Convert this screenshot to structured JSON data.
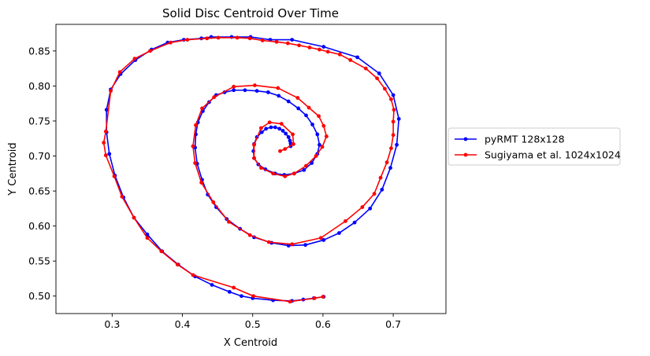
{
  "chart_data": {
    "type": "line",
    "title": "Solid Disc Centroid Over Time",
    "xlabel": "X Centroid",
    "ylabel": "Y Centroid",
    "xlim": [
      0.22,
      0.775
    ],
    "ylim": [
      0.475,
      0.888
    ],
    "xticks": [
      0.3,
      0.4,
      0.5,
      0.6,
      0.7
    ],
    "xtick_labels": [
      "0.3",
      "0.4",
      "0.5",
      "0.6",
      "0.7"
    ],
    "yticks": [
      0.5,
      0.55,
      0.6,
      0.65,
      0.7,
      0.75,
      0.8,
      0.85
    ],
    "ytick_labels": [
      "0.50",
      "0.55",
      "0.60",
      "0.65",
      "0.70",
      "0.75",
      "0.80",
      "0.85"
    ],
    "grid": false,
    "legend_position": "outside-right",
    "series": [
      {
        "name": "pyRMT 128x128",
        "color": "#0000ff",
        "marker": "circle",
        "points": [
          [
            0.601,
            0.499
          ],
          [
            0.587,
            0.497
          ],
          [
            0.572,
            0.495
          ],
          [
            0.556,
            0.493
          ],
          [
            0.529,
            0.494
          ],
          [
            0.5,
            0.497
          ],
          [
            0.484,
            0.5
          ],
          [
            0.467,
            0.506
          ],
          [
            0.442,
            0.516
          ],
          [
            0.418,
            0.528
          ],
          [
            0.394,
            0.545
          ],
          [
            0.371,
            0.564
          ],
          [
            0.35,
            0.588
          ],
          [
            0.331,
            0.612
          ],
          [
            0.316,
            0.641
          ],
          [
            0.304,
            0.672
          ],
          [
            0.296,
            0.703
          ],
          [
            0.292,
            0.734
          ],
          [
            0.292,
            0.766
          ],
          [
            0.298,
            0.795
          ],
          [
            0.312,
            0.817
          ],
          [
            0.333,
            0.837
          ],
          [
            0.356,
            0.852
          ],
          [
            0.379,
            0.862
          ],
          [
            0.402,
            0.866
          ],
          [
            0.427,
            0.868
          ],
          [
            0.441,
            0.87
          ],
          [
            0.47,
            0.87
          ],
          [
            0.497,
            0.87
          ],
          [
            0.525,
            0.866
          ],
          [
            0.556,
            0.866
          ],
          [
            0.601,
            0.856
          ],
          [
            0.649,
            0.841
          ],
          [
            0.68,
            0.818
          ],
          [
            0.7,
            0.787
          ],
          [
            0.708,
            0.753
          ],
          [
            0.705,
            0.716
          ],
          [
            0.696,
            0.683
          ],
          [
            0.684,
            0.652
          ],
          [
            0.667,
            0.625
          ],
          [
            0.645,
            0.605
          ],
          [
            0.623,
            0.59
          ],
          [
            0.601,
            0.58
          ],
          [
            0.575,
            0.573
          ],
          [
            0.551,
            0.572
          ],
          [
            0.527,
            0.576
          ],
          [
            0.502,
            0.584
          ],
          [
            0.482,
            0.596
          ],
          [
            0.463,
            0.61
          ],
          [
            0.448,
            0.627
          ],
          [
            0.436,
            0.645
          ],
          [
            0.428,
            0.666
          ],
          [
            0.421,
            0.689
          ],
          [
            0.418,
            0.712
          ],
          [
            0.419,
            0.731
          ],
          [
            0.422,
            0.748
          ],
          [
            0.429,
            0.764
          ],
          [
            0.438,
            0.777
          ],
          [
            0.448,
            0.787
          ],
          [
            0.46,
            0.791
          ],
          [
            0.473,
            0.794
          ],
          [
            0.489,
            0.794
          ],
          [
            0.506,
            0.793
          ],
          [
            0.522,
            0.791
          ],
          [
            0.537,
            0.786
          ],
          [
            0.551,
            0.778
          ],
          [
            0.565,
            0.768
          ],
          [
            0.576,
            0.758
          ],
          [
            0.585,
            0.745
          ],
          [
            0.592,
            0.731
          ],
          [
            0.595,
            0.716
          ],
          [
            0.592,
            0.703
          ],
          [
            0.584,
            0.69
          ],
          [
            0.573,
            0.68
          ],
          [
            0.559,
            0.675
          ],
          [
            0.545,
            0.673
          ],
          [
            0.532,
            0.675
          ],
          [
            0.518,
            0.681
          ],
          [
            0.508,
            0.688
          ],
          [
            0.502,
            0.697
          ],
          [
            0.501,
            0.707
          ],
          [
            0.502,
            0.717
          ],
          [
            0.506,
            0.727
          ],
          [
            0.513,
            0.734
          ],
          [
            0.519,
            0.739
          ],
          [
            0.526,
            0.741
          ],
          [
            0.532,
            0.741
          ],
          [
            0.538,
            0.739
          ],
          [
            0.543,
            0.736
          ],
          [
            0.547,
            0.732
          ],
          [
            0.551,
            0.727
          ],
          [
            0.553,
            0.722
          ],
          [
            0.554,
            0.718
          ],
          [
            0.554,
            0.714
          ]
        ]
      },
      {
        "name": "Sugiyama et al. 1024x1024",
        "color": "#ff0000",
        "marker": "circle",
        "points": [
          [
            0.6,
            0.499
          ],
          [
            0.588,
            0.497
          ],
          [
            0.553,
            0.492
          ],
          [
            0.501,
            0.5
          ],
          [
            0.473,
            0.512
          ],
          [
            0.415,
            0.53
          ],
          [
            0.393,
            0.545
          ],
          [
            0.37,
            0.564
          ],
          [
            0.35,
            0.583
          ],
          [
            0.331,
            0.612
          ],
          [
            0.314,
            0.642
          ],
          [
            0.303,
            0.671
          ],
          [
            0.291,
            0.701
          ],
          [
            0.288,
            0.719
          ],
          [
            0.291,
            0.735
          ],
          [
            0.298,
            0.793
          ],
          [
            0.311,
            0.82
          ],
          [
            0.332,
            0.839
          ],
          [
            0.354,
            0.85
          ],
          [
            0.383,
            0.862
          ],
          [
            0.407,
            0.866
          ],
          [
            0.435,
            0.868
          ],
          [
            0.451,
            0.869
          ],
          [
            0.478,
            0.869
          ],
          [
            0.496,
            0.868
          ],
          [
            0.514,
            0.865
          ],
          [
            0.534,
            0.863
          ],
          [
            0.55,
            0.861
          ],
          [
            0.566,
            0.858
          ],
          [
            0.581,
            0.855
          ],
          [
            0.595,
            0.852
          ],
          [
            0.607,
            0.849
          ],
          [
            0.624,
            0.845
          ],
          [
            0.639,
            0.837
          ],
          [
            0.661,
            0.825
          ],
          [
            0.677,
            0.811
          ],
          [
            0.688,
            0.796
          ],
          [
            0.697,
            0.781
          ],
          [
            0.701,
            0.766
          ],
          [
            0.7,
            0.749
          ],
          [
            0.7,
            0.73
          ],
          [
            0.697,
            0.711
          ],
          [
            0.691,
            0.691
          ],
          [
            0.682,
            0.669
          ],
          [
            0.673,
            0.646
          ],
          [
            0.656,
            0.627
          ],
          [
            0.632,
            0.607
          ],
          [
            0.597,
            0.583
          ],
          [
            0.556,
            0.574
          ],
          [
            0.523,
            0.577
          ],
          [
            0.496,
            0.587
          ],
          [
            0.466,
            0.606
          ],
          [
            0.444,
            0.634
          ],
          [
            0.427,
            0.662
          ],
          [
            0.418,
            0.69
          ],
          [
            0.415,
            0.714
          ],
          [
            0.419,
            0.744
          ],
          [
            0.428,
            0.768
          ],
          [
            0.445,
            0.784
          ],
          [
            0.473,
            0.799
          ],
          [
            0.503,
            0.801
          ],
          [
            0.536,
            0.797
          ],
          [
            0.564,
            0.783
          ],
          [
            0.58,
            0.769
          ],
          [
            0.594,
            0.757
          ],
          [
            0.601,
            0.743
          ],
          [
            0.605,
            0.728
          ],
          [
            0.599,
            0.713
          ],
          [
            0.59,
            0.7
          ],
          [
            0.576,
            0.686
          ],
          [
            0.559,
            0.675
          ],
          [
            0.546,
            0.671
          ],
          [
            0.529,
            0.675
          ],
          [
            0.512,
            0.683
          ],
          [
            0.502,
            0.697
          ],
          [
            0.502,
            0.716
          ],
          [
            0.512,
            0.74
          ],
          [
            0.524,
            0.748
          ],
          [
            0.541,
            0.746
          ],
          [
            0.557,
            0.731
          ],
          [
            0.558,
            0.717
          ],
          [
            0.546,
            0.71
          ],
          [
            0.539,
            0.707
          ]
        ]
      }
    ]
  }
}
